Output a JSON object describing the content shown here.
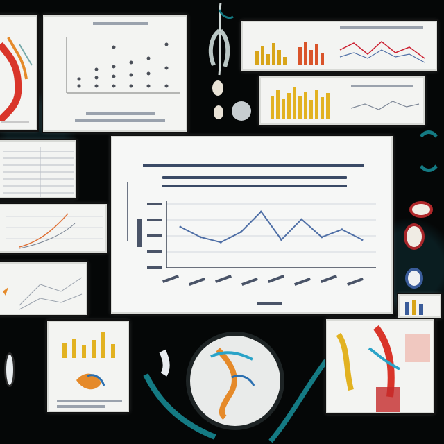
{
  "main_chart": {
    "type": "line",
    "series": [
      {
        "values": [
          16,
          12,
          10,
          14,
          22,
          11,
          19,
          12,
          15,
          11
        ]
      }
    ],
    "ylim": [
      0,
      25
    ],
    "grid": true,
    "line_color": "#4f6fa6"
  },
  "palette": {
    "background": "#050707",
    "card": "#f3f4f2",
    "accent_teal": "#147a83",
    "bar_gold": "#d8a51a",
    "line_blue": "#4f6fa6"
  }
}
